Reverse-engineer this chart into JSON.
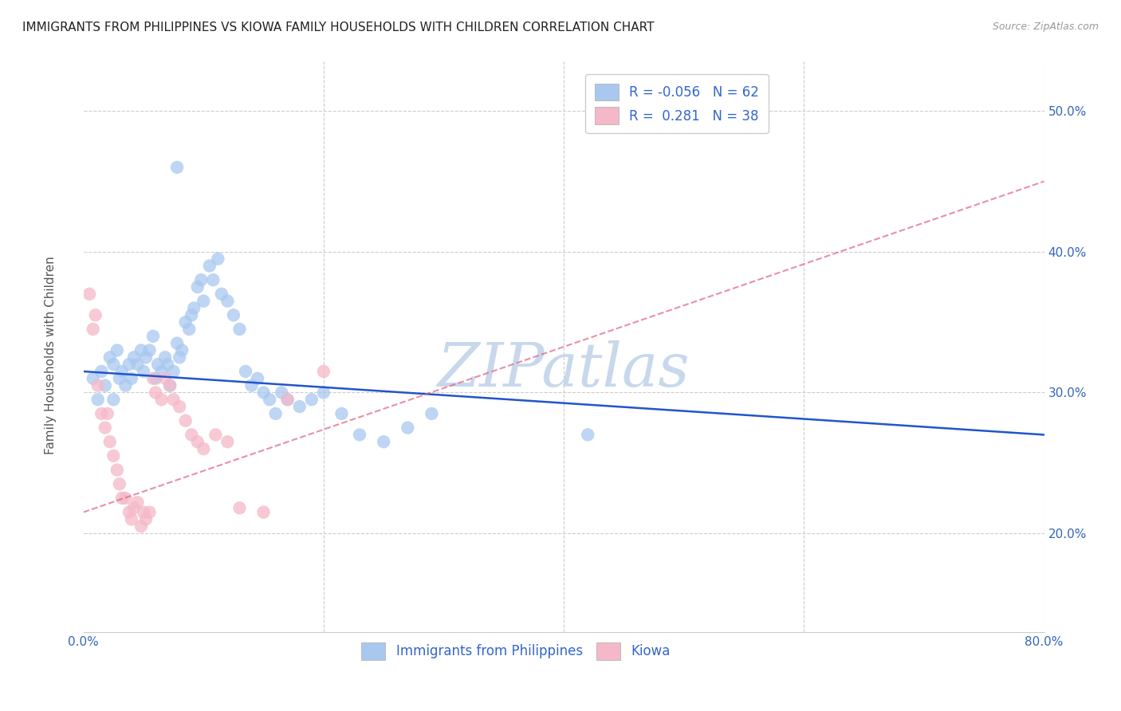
{
  "title": "IMMIGRANTS FROM PHILIPPINES VS KIOWA FAMILY HOUSEHOLDS WITH CHILDREN CORRELATION CHART",
  "source": "Source: ZipAtlas.com",
  "ylabel": "Family Households with Children",
  "xlim": [
    0.0,
    0.8
  ],
  "ylim": [
    0.13,
    0.535
  ],
  "yticks": [
    0.2,
    0.3,
    0.4,
    0.5
  ],
  "xticks": [
    0.0,
    0.2,
    0.4,
    0.6,
    0.8
  ],
  "ytick_labels": [
    "20.0%",
    "30.0%",
    "40.0%",
    "50.0%"
  ],
  "blue_color": "#A8C8F0",
  "pink_color": "#F5B8C8",
  "blue_line_color": "#2255CC",
  "pink_line_color": "#E06080",
  "watermark": "ZIPatlas",
  "watermark_color": "#C8D8EC",
  "R_blue": -0.056,
  "N_blue": 62,
  "R_pink": 0.281,
  "N_pink": 38,
  "blue_scatter_x": [
    0.008,
    0.012,
    0.015,
    0.018,
    0.022,
    0.025,
    0.025,
    0.028,
    0.03,
    0.032,
    0.035,
    0.038,
    0.04,
    0.042,
    0.045,
    0.048,
    0.05,
    0.052,
    0.055,
    0.058,
    0.06,
    0.062,
    0.065,
    0.068,
    0.07,
    0.072,
    0.075,
    0.078,
    0.08,
    0.082,
    0.085,
    0.088,
    0.09,
    0.092,
    0.095,
    0.098,
    0.1,
    0.105,
    0.108,
    0.112,
    0.115,
    0.12,
    0.125,
    0.13,
    0.135,
    0.14,
    0.145,
    0.15,
    0.155,
    0.16,
    0.165,
    0.17,
    0.18,
    0.19,
    0.2,
    0.215,
    0.23,
    0.25,
    0.27,
    0.29,
    0.42,
    0.078
  ],
  "blue_scatter_y": [
    0.31,
    0.295,
    0.315,
    0.305,
    0.325,
    0.32,
    0.295,
    0.33,
    0.31,
    0.315,
    0.305,
    0.32,
    0.31,
    0.325,
    0.32,
    0.33,
    0.315,
    0.325,
    0.33,
    0.34,
    0.31,
    0.32,
    0.315,
    0.325,
    0.32,
    0.305,
    0.315,
    0.335,
    0.325,
    0.33,
    0.35,
    0.345,
    0.355,
    0.36,
    0.375,
    0.38,
    0.365,
    0.39,
    0.38,
    0.395,
    0.37,
    0.365,
    0.355,
    0.345,
    0.315,
    0.305,
    0.31,
    0.3,
    0.295,
    0.285,
    0.3,
    0.295,
    0.29,
    0.295,
    0.3,
    0.285,
    0.27,
    0.265,
    0.275,
    0.285,
    0.27,
    0.46
  ],
  "pink_scatter_x": [
    0.005,
    0.008,
    0.01,
    0.012,
    0.015,
    0.018,
    0.02,
    0.022,
    0.025,
    0.028,
    0.03,
    0.032,
    0.035,
    0.038,
    0.04,
    0.042,
    0.045,
    0.048,
    0.05,
    0.052,
    0.055,
    0.058,
    0.06,
    0.065,
    0.068,
    0.072,
    0.075,
    0.08,
    0.085,
    0.09,
    0.095,
    0.1,
    0.11,
    0.12,
    0.13,
    0.15,
    0.17,
    0.2
  ],
  "pink_scatter_y": [
    0.37,
    0.345,
    0.355,
    0.305,
    0.285,
    0.275,
    0.285,
    0.265,
    0.255,
    0.245,
    0.235,
    0.225,
    0.225,
    0.215,
    0.21,
    0.218,
    0.222,
    0.205,
    0.215,
    0.21,
    0.215,
    0.31,
    0.3,
    0.295,
    0.31,
    0.305,
    0.295,
    0.29,
    0.28,
    0.27,
    0.265,
    0.26,
    0.27,
    0.265,
    0.218,
    0.215,
    0.295,
    0.315
  ],
  "blue_trend_y_start": 0.315,
  "blue_trend_y_end": 0.27,
  "pink_trend_y_start": 0.215,
  "pink_trend_y_end": 0.45,
  "grid_color": "#CCCCCC",
  "background_color": "#FFFFFF",
  "title_fontsize": 11,
  "axis_label_fontsize": 11,
  "tick_fontsize": 11,
  "legend_fontsize": 12
}
